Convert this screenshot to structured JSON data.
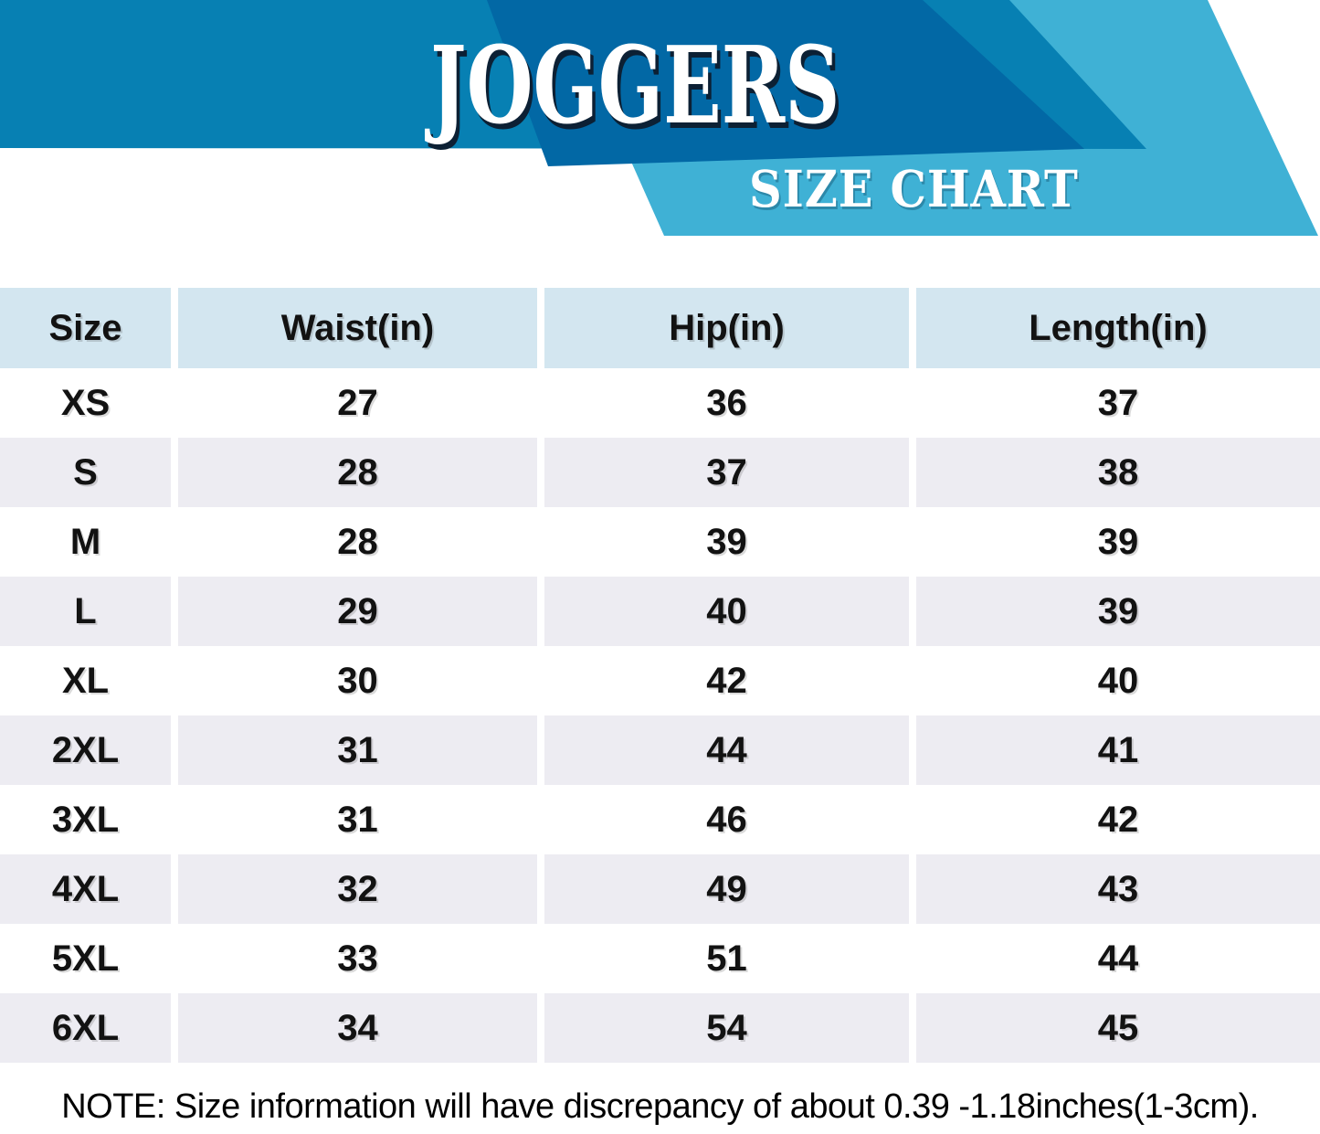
{
  "header": {
    "title": "JOGGERS",
    "subtitle": "SIZE CHART",
    "colors": {
      "band_medium": "#0780B3",
      "band_dark": "#0268A5",
      "band_light": "#3FB1D5",
      "title_color": "#FFFFFF",
      "title_shadow": "#0C2034"
    }
  },
  "table": {
    "headers": [
      "Size",
      "Waist(in)",
      "Hip(in)",
      "Length(in)"
    ],
    "rows": [
      {
        "size": "XS",
        "waist": "27",
        "hip": "36",
        "length": "37"
      },
      {
        "size": "S",
        "waist": "28",
        "hip": "37",
        "length": "38"
      },
      {
        "size": "M",
        "waist": "28",
        "hip": "39",
        "length": "39"
      },
      {
        "size": "L",
        "waist": "29",
        "hip": "40",
        "length": "39"
      },
      {
        "size": "XL",
        "waist": "30",
        "hip": "42",
        "length": "40"
      },
      {
        "size": "2XL",
        "waist": "31",
        "hip": "44",
        "length": "41"
      },
      {
        "size": "3XL",
        "waist": "31",
        "hip": "46",
        "length": "42"
      },
      {
        "size": "4XL",
        "waist": "32",
        "hip": "49",
        "length": "43"
      },
      {
        "size": "5XL",
        "waist": "33",
        "hip": "51",
        "length": "44"
      },
      {
        "size": "6XL",
        "waist": "34",
        "hip": "54",
        "length": "45"
      }
    ],
    "colors": {
      "header_bg": "#D3E6F0",
      "row_bg": "#FFFFFF",
      "row_alt_bg": "#EDECF2",
      "text": "#121212"
    }
  },
  "note": "NOTE: Size information will have discrepancy of about 0.39 -1.18inches(1-3cm)."
}
